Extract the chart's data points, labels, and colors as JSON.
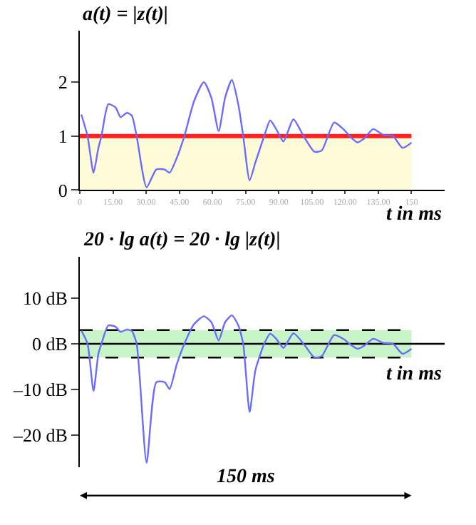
{
  "chart_data": [
    {
      "type": "line",
      "ylabel": "a(t) = |z(t)|",
      "xlabel": "t in ms",
      "xlim": [
        0,
        165
      ],
      "ylim": [
        0,
        2.95
      ],
      "xticks": [
        0,
        {
          "value": 15,
          "label": "15.00"
        },
        {
          "value": 30,
          "label": "30.00"
        },
        {
          "value": 45,
          "label": "45.00"
        },
        {
          "value": 60,
          "label": "60.00"
        },
        {
          "value": 75,
          "label": "75.00"
        },
        {
          "value": 90,
          "label": "90.00"
        },
        {
          "value": 105,
          "label": "105.00"
        },
        {
          "value": 120,
          "label": "120.00"
        },
        {
          "value": 135,
          "label": "135.00"
        },
        150
      ],
      "yticks": [
        0,
        1,
        2
      ],
      "x": [
        0.7,
        3.5,
        6.2,
        8.4,
        9.8,
        12.9,
        16.2,
        18.4,
        21.3,
        23.5,
        25.7,
        30.2,
        34.6,
        38.4,
        40.6,
        43.9,
        47.3,
        51.7,
        56.1,
        59.5,
        62.8,
        65.7,
        68.8,
        71.7,
        73.9,
        76.8,
        79.4,
        83.4,
        86.1,
        88.8,
        92.1,
        96.6,
        101.2,
        106.1,
        109.4,
        115.0,
        119.4,
        122.0,
        125.6,
        128.7,
        132.7,
        137.2,
        141.6,
        146.0,
        150
      ],
      "series": [
        {
          "color": "#6b6bff",
          "values": [
            1.4,
            1.0,
            0.32,
            0.78,
            1.0,
            1.59,
            1.53,
            1.35,
            1.43,
            1.38,
            1.0,
            0.05,
            0.38,
            0.38,
            0.32,
            0.6,
            1.0,
            1.65,
            2.0,
            1.71,
            1.09,
            1.71,
            2.04,
            1.58,
            1.0,
            0.18,
            0.51,
            1.0,
            1.29,
            1.13,
            0.9,
            1.31,
            1.0,
            0.71,
            0.73,
            1.25,
            1.12,
            1.0,
            0.88,
            0.96,
            1.13,
            1.02,
            1.0,
            0.78,
            0.88
          ]
        }
      ],
      "bands": [
        {
          "axis": "y",
          "from": 0,
          "to": 1,
          "color": "#fdfbd8"
        }
      ],
      "ref_lines": [
        {
          "axis": "y",
          "value": 1,
          "color": "#ff2020",
          "line_style": "solid"
        }
      ],
      "grid": false,
      "marker": "none",
      "line_style": "solid"
    },
    {
      "type": "line",
      "ylabel": "20 · lg a(t) = 20 · lg |z(t)|",
      "xlabel": "t in ms",
      "xlim": [
        0,
        165
      ],
      "ylim": [
        -27,
        19
      ],
      "yticks": [
        {
          "value": -20,
          "label": "–20 dB"
        },
        {
          "value": -10,
          "label": "–10 dB"
        },
        {
          "value": 0,
          "label": "0 dB"
        },
        {
          "value": 10,
          "label": "10 dB"
        }
      ],
      "tick_labels": "y",
      "x": [
        0.7,
        3.5,
        6.2,
        8.4,
        9.8,
        12.9,
        16.2,
        18.4,
        21.3,
        23.5,
        25.7,
        30.2,
        34.6,
        38.4,
        40.6,
        43.9,
        47.3,
        51.7,
        56.1,
        59.5,
        62.8,
        65.7,
        68.8,
        71.7,
        73.9,
        76.8,
        79.4,
        83.4,
        86.1,
        88.8,
        92.1,
        96.6,
        101.2,
        106.1,
        109.4,
        115.0,
        119.4,
        122.0,
        125.6,
        128.7,
        132.7,
        137.2,
        141.6,
        146.0,
        150
      ],
      "series": [
        {
          "color": "#6b6bff",
          "values": [
            2.9,
            0,
            -10.3,
            -2.2,
            0,
            4.0,
            3.7,
            2.6,
            3.1,
            2.8,
            0,
            -26,
            -8.4,
            -8.4,
            -9.9,
            -4.4,
            0,
            4.3,
            6.0,
            4.7,
            0.7,
            4.7,
            6.2,
            4.0,
            0,
            -14.9,
            -5.8,
            0,
            2.2,
            1.1,
            -0.9,
            2.3,
            0,
            -3.0,
            -2.7,
            1.9,
            1.0,
            0,
            -1.1,
            -0.4,
            1.1,
            0.2,
            0,
            -2.2,
            -1.1
          ]
        }
      ],
      "bands": [
        {
          "axis": "y",
          "from": -3,
          "to": 3,
          "color": "#c8f5c8"
        }
      ],
      "ref_lines": [
        {
          "axis": "y",
          "value": 0,
          "color": "#000000",
          "line_style": "solid"
        },
        {
          "axis": "y",
          "value": 3,
          "color": "#000000",
          "line_style": "dashed"
        },
        {
          "axis": "y",
          "value": -3,
          "color": "#000000",
          "line_style": "dashed"
        }
      ],
      "annotations": [
        "150 ms"
      ],
      "grid": false,
      "marker": "none",
      "line_style": "solid"
    }
  ]
}
